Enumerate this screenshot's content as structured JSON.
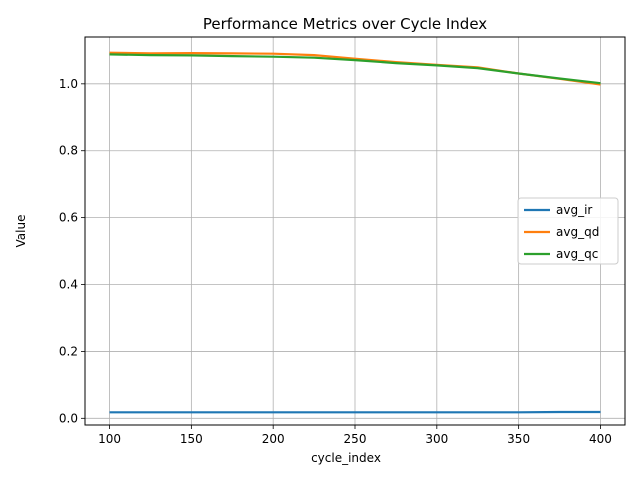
{
  "chart_data": {
    "type": "line",
    "title": "Performance Metrics over Cycle Index",
    "xlabel": "cycle_index",
    "ylabel": "Value",
    "xlim": [
      85,
      415
    ],
    "ylim": [
      -0.02,
      1.14
    ],
    "xticks": [
      100,
      150,
      200,
      250,
      300,
      350,
      400
    ],
    "yticks": [
      0.0,
      0.2,
      0.4,
      0.6,
      0.8,
      1.0
    ],
    "ytick_labels": [
      "0.0",
      "0.2",
      "0.4",
      "0.6",
      "0.8",
      "1.0"
    ],
    "grid": true,
    "legend_position": "center-right",
    "x": [
      100,
      125,
      150,
      175,
      200,
      225,
      250,
      275,
      300,
      325,
      350,
      375,
      400
    ],
    "series": [
      {
        "name": "avg_ir",
        "color": "#1f77b4",
        "values": [
          0.018,
          0.018,
          0.018,
          0.018,
          0.018,
          0.018,
          0.018,
          0.018,
          0.018,
          0.018,
          0.018,
          0.019,
          0.019
        ]
      },
      {
        "name": "avg_qd",
        "color": "#ff7f0e",
        "values": [
          1.093,
          1.091,
          1.092,
          1.091,
          1.09,
          1.086,
          1.075,
          1.065,
          1.057,
          1.049,
          1.031,
          1.015,
          0.998
        ]
      },
      {
        "name": "avg_qc",
        "color": "#2ca02c",
        "values": [
          1.088,
          1.086,
          1.085,
          1.083,
          1.081,
          1.078,
          1.071,
          1.062,
          1.055,
          1.047,
          1.031,
          1.016,
          1.002
        ]
      }
    ]
  }
}
